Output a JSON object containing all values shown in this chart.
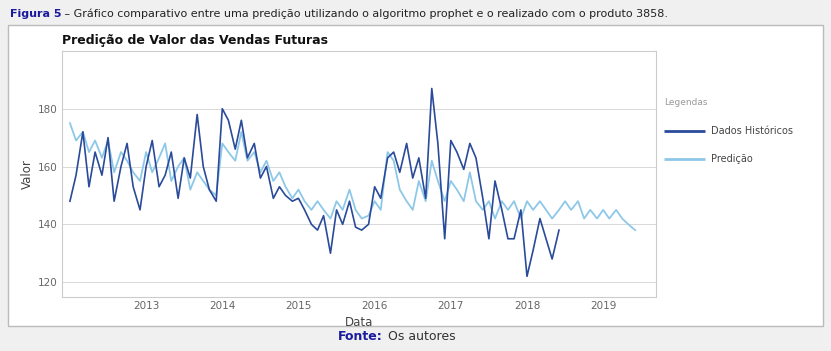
{
  "title": "Predição de Valor das Vendas Futuras",
  "xlabel": "Data",
  "ylabel": "Valor",
  "legend_title": "Legendas",
  "legend_entries": [
    "Dados Históricos",
    "Predição"
  ],
  "color_historico": "#2a4a9a",
  "color_predicao": "#8ec8e8",
  "ylim": [
    115,
    200
  ],
  "yticks": [
    120,
    140,
    160,
    180
  ],
  "fig_caption_bold": "Figura 5",
  "fig_caption_rest": " – Gráfico comparativo entre uma predição utilizando o algoritmo prophet e o realizado com o produto 3858.",
  "fonte_bold": "Fonte:",
  "fonte_rest": " Os autores",
  "background_color": "#f0f0f0",
  "plot_bg_color": "#ffffff",
  "outer_bg_color": "#f0f0f0",
  "historico_x": [
    2012.0,
    2012.08,
    2012.17,
    2012.25,
    2012.33,
    2012.42,
    2012.5,
    2012.58,
    2012.67,
    2012.75,
    2012.83,
    2012.92,
    2013.0,
    2013.08,
    2013.17,
    2013.25,
    2013.33,
    2013.42,
    2013.5,
    2013.58,
    2013.67,
    2013.75,
    2013.83,
    2013.92,
    2014.0,
    2014.08,
    2014.17,
    2014.25,
    2014.33,
    2014.42,
    2014.5,
    2014.58,
    2014.67,
    2014.75,
    2014.83,
    2014.92,
    2015.0,
    2015.08,
    2015.17,
    2015.25,
    2015.33,
    2015.42,
    2015.5,
    2015.58,
    2015.67,
    2015.75,
    2015.83,
    2015.92,
    2016.0,
    2016.08,
    2016.17,
    2016.25,
    2016.33,
    2016.42,
    2016.5,
    2016.58,
    2016.67,
    2016.75,
    2016.83,
    2016.92,
    2017.0,
    2017.08,
    2017.17,
    2017.25,
    2017.33,
    2017.42,
    2017.5,
    2017.58,
    2017.67,
    2017.75,
    2017.83,
    2017.92,
    2018.0,
    2018.08,
    2018.17,
    2018.25,
    2018.33,
    2018.42
  ],
  "historico_y": [
    148,
    157,
    172,
    153,
    165,
    157,
    170,
    148,
    160,
    168,
    153,
    145,
    160,
    169,
    153,
    157,
    165,
    149,
    163,
    156,
    178,
    160,
    152,
    148,
    180,
    176,
    166,
    176,
    163,
    168,
    156,
    160,
    149,
    153,
    150,
    148,
    149,
    145,
    140,
    138,
    143,
    130,
    145,
    140,
    148,
    139,
    138,
    140,
    153,
    149,
    163,
    165,
    158,
    168,
    156,
    163,
    149,
    187,
    168,
    135,
    169,
    165,
    159,
    168,
    163,
    149,
    135,
    155,
    145,
    135,
    135,
    145,
    122,
    131,
    142,
    135,
    128,
    138
  ],
  "predicao_x": [
    2012.0,
    2012.08,
    2012.17,
    2012.25,
    2012.33,
    2012.42,
    2012.5,
    2012.58,
    2012.67,
    2012.75,
    2012.83,
    2012.92,
    2013.0,
    2013.08,
    2013.17,
    2013.25,
    2013.33,
    2013.42,
    2013.5,
    2013.58,
    2013.67,
    2013.75,
    2013.83,
    2013.92,
    2014.0,
    2014.08,
    2014.17,
    2014.25,
    2014.33,
    2014.42,
    2014.5,
    2014.58,
    2014.67,
    2014.75,
    2014.83,
    2014.92,
    2015.0,
    2015.08,
    2015.17,
    2015.25,
    2015.33,
    2015.42,
    2015.5,
    2015.58,
    2015.67,
    2015.75,
    2015.83,
    2015.92,
    2016.0,
    2016.08,
    2016.17,
    2016.25,
    2016.33,
    2016.42,
    2016.5,
    2016.58,
    2016.67,
    2016.75,
    2016.83,
    2016.92,
    2017.0,
    2017.08,
    2017.17,
    2017.25,
    2017.33,
    2017.42,
    2017.5,
    2017.58,
    2017.67,
    2017.75,
    2017.83,
    2017.92,
    2018.0,
    2018.08,
    2018.17,
    2018.25,
    2018.33,
    2018.42,
    2018.5,
    2018.58,
    2018.67,
    2018.75,
    2018.83,
    2018.92,
    2019.0,
    2019.08,
    2019.17,
    2019.25,
    2019.33,
    2019.42
  ],
  "predicao_y": [
    175,
    169,
    172,
    165,
    169,
    163,
    169,
    158,
    165,
    162,
    158,
    155,
    165,
    158,
    163,
    168,
    155,
    160,
    163,
    152,
    158,
    155,
    152,
    150,
    168,
    165,
    162,
    172,
    162,
    165,
    158,
    162,
    155,
    158,
    153,
    149,
    152,
    148,
    145,
    148,
    145,
    142,
    148,
    145,
    152,
    145,
    142,
    143,
    148,
    145,
    165,
    162,
    152,
    148,
    145,
    155,
    148,
    162,
    155,
    148,
    155,
    152,
    148,
    158,
    148,
    145,
    148,
    142,
    148,
    145,
    148,
    142,
    148,
    145,
    148,
    145,
    142,
    145,
    148,
    145,
    148,
    142,
    145,
    142,
    145,
    142,
    145,
    142,
    140,
    138
  ]
}
